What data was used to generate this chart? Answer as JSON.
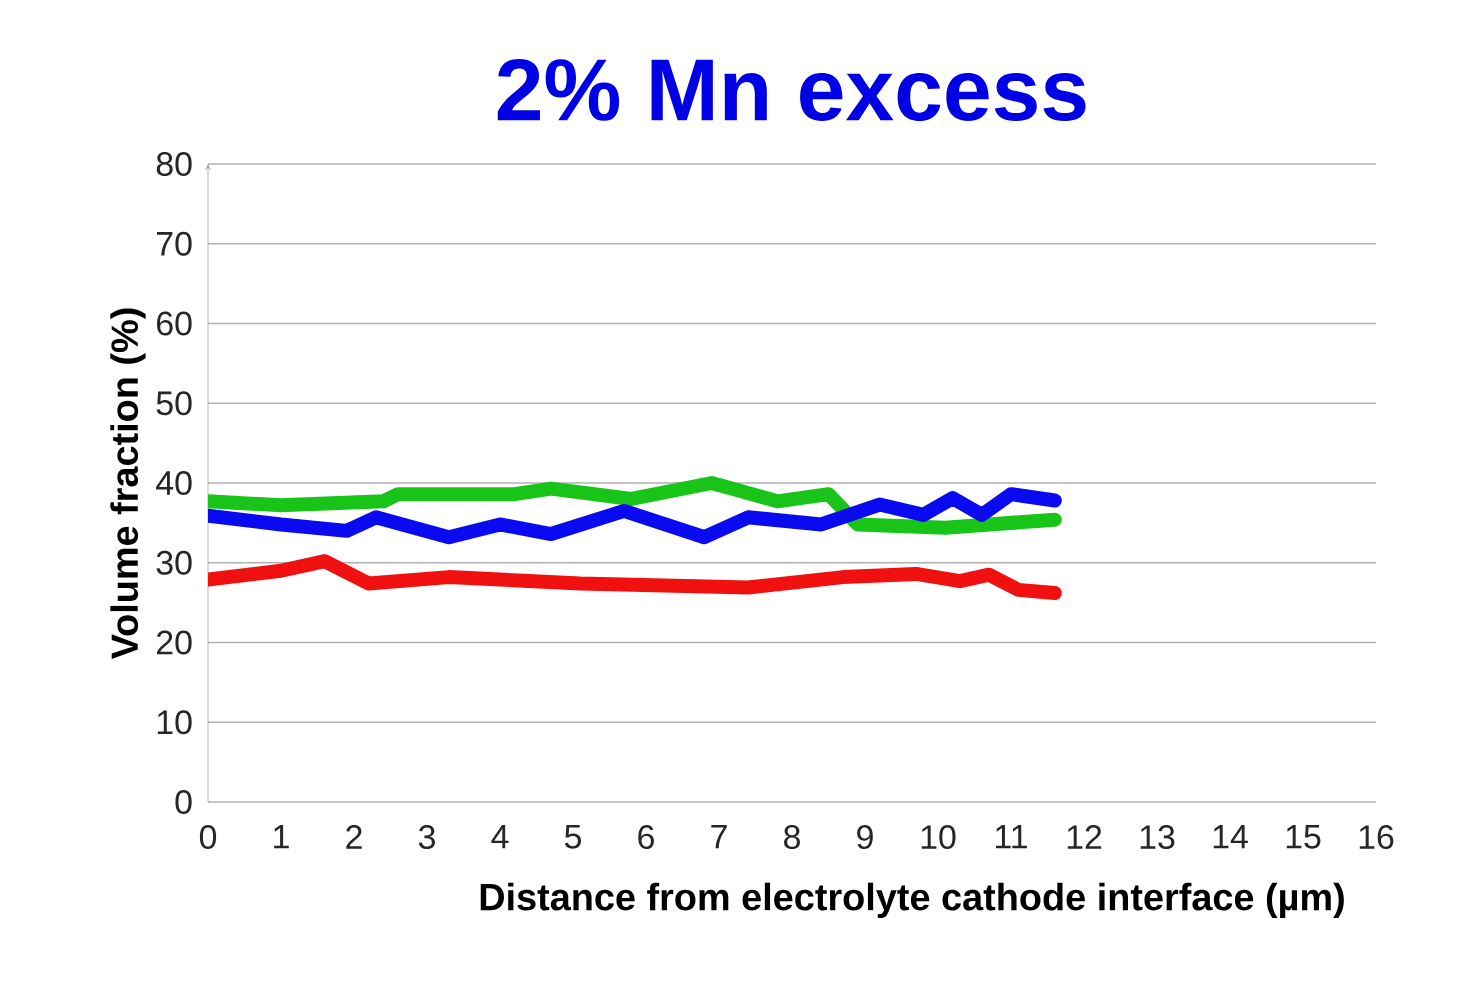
{
  "chart_data": {
    "type": "line",
    "title": "2% Mn excess",
    "xlabel": "Distance from electrolyte cathode interface (µm)",
    "ylabel": "Volume fraction (%)",
    "xlim": [
      0,
      16
    ],
    "xticks": [
      0,
      1,
      2,
      3,
      4,
      5,
      6,
      7,
      8,
      9,
      10,
      11,
      12,
      13,
      14,
      15,
      16
    ],
    "ylim": [
      0,
      80
    ],
    "yticks": [
      0,
      10,
      20,
      30,
      40,
      50,
      60,
      70,
      80
    ],
    "grid": "y",
    "marker": "none",
    "line_style": "solid",
    "series": [
      {
        "color": "#19c419",
        "x": [
          0,
          1,
          2.4,
          2.6,
          4.2,
          4.7,
          5.8,
          6.9,
          7.8,
          8.5,
          8.9,
          10.1,
          11.6
        ],
        "values": [
          37.7,
          37.2,
          37.7,
          38.6,
          38.6,
          39.3,
          38,
          40,
          37.7,
          38.6,
          34.8,
          34.4,
          35.4
        ]
      },
      {
        "color": "#0a0af0",
        "x": [
          0,
          1,
          1.9,
          2.3,
          3.3,
          4,
          4.7,
          5.7,
          6.8,
          7.4,
          8.4,
          9.2,
          9.8,
          10.2,
          10.6,
          11,
          11.6
        ],
        "values": [
          35.9,
          34.8,
          34,
          35.7,
          33.2,
          34.8,
          33.6,
          36.5,
          33.2,
          35.7,
          34.8,
          37.3,
          36,
          38.1,
          36,
          38.6,
          37.8
        ]
      },
      {
        "color": "#f01010",
        "x": [
          0,
          1,
          1.6,
          2.2,
          3.3,
          5.1,
          7.4,
          8.7,
          9.7,
          10.3,
          10.7,
          11.1,
          11.6
        ],
        "values": [
          27.9,
          29,
          30.2,
          27.4,
          28.2,
          27.4,
          26.9,
          28.2,
          28.6,
          27.7,
          28.5,
          26.6,
          26.2
        ]
      }
    ]
  }
}
